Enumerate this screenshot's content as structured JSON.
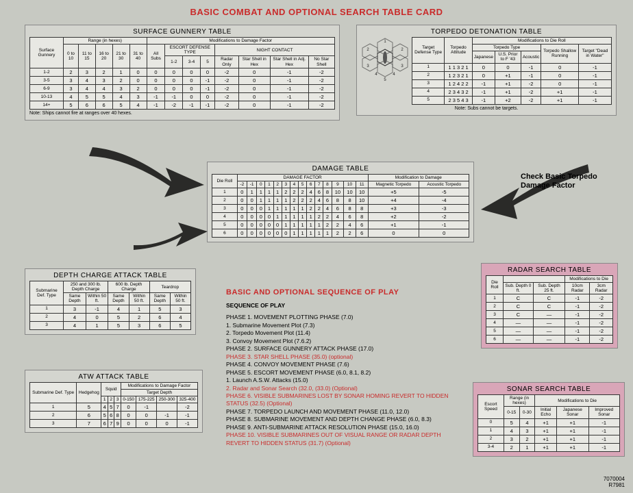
{
  "main_title": "BASIC COMBAT AND OPTIONAL SEARCH TABLE CARD",
  "surface_gunnery": {
    "title": "SURFACE GUNNERY TABLE",
    "super_range": "Range (in hexes)",
    "super_mod": "Modifications to Damage Factor",
    "sub_escort": "ESCORT DEFENSE TYPE",
    "sub_night": "NIGHT CONTACT",
    "col_rowhdr": "Surface Gunnery",
    "cols_range": [
      "0 to 10",
      "11 to 15",
      "16 to 20",
      "21 to 30",
      "31 to 40"
    ],
    "col_allsubs": "All Subs",
    "cols_escort": [
      "1-2",
      "3-4",
      "5"
    ],
    "cols_night": [
      "Radar Only",
      "Star Shell in Hex",
      "Star Shell in Adj. Hex",
      "No Star Shell"
    ],
    "rows": [
      {
        "h": "1-2",
        "v": [
          "2",
          "3",
          "2",
          "1",
          "0",
          "0",
          "0",
          "0",
          "0",
          "-2",
          "0",
          "-1",
          "-2"
        ]
      },
      {
        "h": "3-5",
        "v": [
          "3",
          "4",
          "3",
          "2",
          "0",
          "0",
          "0",
          "0",
          "-1",
          "-2",
          "0",
          "-1",
          "-2"
        ]
      },
      {
        "h": "6-9",
        "v": [
          "3",
          "4",
          "4",
          "3",
          "2",
          "0",
          "0",
          "0",
          "-1",
          "-2",
          "0",
          "-1",
          "-2"
        ]
      },
      {
        "h": "10-13",
        "v": [
          "4",
          "5",
          "5",
          "4",
          "3",
          "-1",
          "-1",
          "0",
          "0",
          "-2",
          "0",
          "-1",
          "-2"
        ]
      },
      {
        "h": "14+",
        "v": [
          "5",
          "6",
          "6",
          "5",
          "4",
          "-1",
          "-2",
          "-1",
          "-1",
          "-2",
          "0",
          "-1",
          "-2"
        ]
      }
    ],
    "note": "Note: Ships cannot fire at ranges over 40 hexes."
  },
  "torpedo_detonation": {
    "title": "TORPEDO DETONATION TABLE",
    "super_mod": "Modifications to Die Roll",
    "sub_type": "Torpedo Type",
    "col_tdt": "Target Defense Type",
    "col_att": "Torpedo Attitude",
    "cols_type": [
      "Japanese",
      "U.S. Prior to F '43",
      "Acoustic"
    ],
    "col_shallow": "Torpedo Shallow Running",
    "col_dead": "Target \"Dead in Water\"",
    "rows": [
      {
        "h": "1",
        "att": "1 1 3 2 1",
        "v": [
          "0",
          "0",
          "-1",
          "0",
          "-1"
        ]
      },
      {
        "h": "2",
        "att": "1 2 3 2 1",
        "v": [
          "0",
          "+1",
          "-1",
          "0",
          "-1"
        ]
      },
      {
        "h": "3",
        "att": "1 2 4 2 2",
        "v": [
          "-1",
          "+1",
          "-2",
          "0",
          "-1"
        ]
      },
      {
        "h": "4",
        "att": "2 3 4 3 2",
        "v": [
          "-1",
          "+1",
          "-2",
          "+1",
          "-1"
        ]
      },
      {
        "h": "5",
        "att": "2 3 5 4 3",
        "v": [
          "-1",
          "+2",
          "-2",
          "+1",
          "-1"
        ]
      }
    ],
    "note": "Note: Subs cannot be targets."
  },
  "damage": {
    "title": "DAMAGE TABLE",
    "sub": "DAMAGE FACTOR",
    "mod_hdr": "Modification to Damage",
    "col_die": "Die Roll",
    "cols_df": [
      "-2",
      "-1",
      "0",
      "1",
      "2",
      "3",
      "4",
      "5",
      "6",
      "7",
      "8",
      "9",
      "10",
      "11"
    ],
    "col_mag": "Magnetic Torpedo",
    "col_ac": "Acoustic Torpedo",
    "rows": [
      {
        "h": "1",
        "v": [
          "0",
          "1",
          "1",
          "1",
          "1",
          "2",
          "2",
          "2",
          "4",
          "6",
          "8",
          "10",
          "10",
          "10",
          "+5",
          "-5"
        ]
      },
      {
        "h": "2",
        "v": [
          "0",
          "0",
          "1",
          "1",
          "1",
          "1",
          "2",
          "2",
          "2",
          "4",
          "6",
          "8",
          "8",
          "10",
          "+4",
          "-4"
        ]
      },
      {
        "h": "3",
        "v": [
          "0",
          "0",
          "0",
          "1",
          "1",
          "1",
          "1",
          "1",
          "2",
          "2",
          "4",
          "6",
          "8",
          "8",
          "+3",
          "-3"
        ]
      },
      {
        "h": "4",
        "v": [
          "0",
          "0",
          "0",
          "0",
          "1",
          "1",
          "1",
          "1",
          "1",
          "2",
          "2",
          "4",
          "6",
          "8",
          "+2",
          "-2"
        ]
      },
      {
        "h": "5",
        "v": [
          "0",
          "0",
          "0",
          "0",
          "0",
          "1",
          "1",
          "1",
          "1",
          "1",
          "2",
          "2",
          "4",
          "6",
          "+1",
          "-1"
        ]
      },
      {
        "h": "6",
        "v": [
          "0",
          "0",
          "0",
          "0",
          "0",
          "0",
          "1",
          "1",
          "1",
          "1",
          "1",
          "2",
          "2",
          "6",
          "0",
          "0"
        ]
      }
    ]
  },
  "depth_charge": {
    "title": "DEPTH CHARGE ATTACK TABLE",
    "grp1": "250 and 300 lb. Depth Charge",
    "grp2": "600 lb. Depth Charge",
    "grp3": "Teardrop",
    "col_rowhdr": "Submarine Def. Type",
    "subcols": [
      "Same Depth",
      "Within 50 ft."
    ],
    "rows": [
      {
        "h": "1",
        "v": [
          "3",
          "-1",
          "4",
          "1",
          "5",
          "3"
        ]
      },
      {
        "h": "2",
        "v": [
          "4",
          "0",
          "5",
          "2",
          "6",
          "4"
        ]
      },
      {
        "h": "3",
        "v": [
          "4",
          "1",
          "5",
          "3",
          "6",
          "5"
        ]
      }
    ]
  },
  "atw": {
    "title": "ATW ATTACK TABLE",
    "col_rowhdr": "Submarine Def. Type",
    "col_hedge": "Hedgehog",
    "grp_squid": "Squid",
    "squid_cols": [
      "1",
      "2",
      "3"
    ],
    "grp_mod": "Modifications to Damage Factor",
    "sub_td": "Target Depth",
    "td_cols": [
      "0-150",
      "175-225",
      "250-300",
      "325-400"
    ],
    "rows": [
      {
        "h": "1",
        "v": [
          "5",
          "4",
          "5",
          "7",
          "0",
          "-1",
          "",
          "-2"
        ]
      },
      {
        "h": "2",
        "v": [
          "6",
          "5",
          "6",
          "8",
          "0",
          "0",
          "-1",
          "-1"
        ]
      },
      {
        "h": "3",
        "v": [
          "7",
          "6",
          "7",
          "9",
          "0",
          "0",
          "0",
          "-1"
        ]
      }
    ]
  },
  "radar": {
    "title": "RADAR SEARCH TABLE",
    "mod": "Modifications to Die",
    "col_die": "Die Roll",
    "cols": [
      "Sub. Depth 0 ft.",
      "Sub. Depth 25 ft.",
      "10cm Radar",
      "3cm Radar"
    ],
    "rows": [
      {
        "h": "1",
        "v": [
          "C",
          "C",
          "-1",
          "-2"
        ]
      },
      {
        "h": "2",
        "v": [
          "C",
          "C",
          "-1",
          "-2"
        ]
      },
      {
        "h": "3",
        "v": [
          "C",
          "—",
          "-1",
          "-2"
        ]
      },
      {
        "h": "4",
        "v": [
          "—",
          "—",
          "-1",
          "-2"
        ]
      },
      {
        "h": "5",
        "v": [
          "—",
          "—",
          "-1",
          "-2"
        ]
      },
      {
        "h": "6",
        "v": [
          "—",
          "—",
          "-1",
          "-2"
        ]
      }
    ]
  },
  "sonar": {
    "title": "SONAR SEARCH TABLE",
    "range_hdr": "Range (in hexes)",
    "mod": "Modifications to Die",
    "col_esc": "Escort Speed",
    "cols": [
      "0-15",
      "0-30",
      "Initial Echo",
      "Japanese Sonar",
      "Improved Sonar"
    ],
    "rows": [
      {
        "h": "0",
        "v": [
          "5",
          "4",
          "+1",
          "+1",
          "-1"
        ]
      },
      {
        "h": "1",
        "v": [
          "4",
          "3",
          "+1",
          "+1",
          "-1"
        ]
      },
      {
        "h": "2",
        "v": [
          "3",
          "2",
          "+1",
          "+1",
          "-1"
        ]
      },
      {
        "h": "3-4",
        "v": [
          "2",
          "1",
          "+1",
          "+1",
          "-1"
        ]
      }
    ]
  },
  "arrow_label": "Check Basic Torpedo Damage Factor",
  "sequence": {
    "header": "BASIC AND OPTIONAL SEQUENCE OF PLAY",
    "sub": "SEQUENCE OF PLAY",
    "lines": [
      {
        "t": "PHASE 1. MOVEMENT PLOTTING PHASE (7.0)",
        "o": false
      },
      {
        "t": "1. Submarine Movement Plot (7.3)",
        "o": false
      },
      {
        "t": "2. Torpedo Movement Plot (11.4)",
        "o": false
      },
      {
        "t": "3. Convoy Movement Plot (7.6.2)",
        "o": false
      },
      {
        "t": "PHASE 2. SURFACE GUNNERY ATTACK PHASE (17.0)",
        "o": false
      },
      {
        "t": "PHASE 3. STAR SHELL PHASE (35.0) (optional)",
        "o": true
      },
      {
        "t": "PHASE 4. CONVOY MOVEMENT PHASE (7.6)",
        "o": false
      },
      {
        "t": "PHASE 5. ESCORT MOVEMENT PHASE (6.0, 8.1, 8.2)",
        "o": false
      },
      {
        "t": "1. Launch A.S.W. Attacks (15.0)",
        "o": false
      },
      {
        "t": "2. Radar and Sonar Search (32.0, (33.0) (Optional)",
        "o": true
      },
      {
        "t": "PHASE 6. VISIBLE SUBMARINES LOST BY SONAR HOMING REVERT TO HIDDEN STATUS (32.5) (Optional)",
        "o": true
      },
      {
        "t": "PHASE 7. TORPEDO LAUNCH AND MOVEMENT PHASE (11.0, 12.0)",
        "o": false
      },
      {
        "t": "PHASE 8. SUBMARINE MOVEMENT AND DEPTH CHANGE PHASE (6.0, 8.3)",
        "o": false
      },
      {
        "t": "PHASE 9. ANTI-SUBMARINE ATTACK RESOLUTION PHASE (15.0, 16.0)",
        "o": false
      },
      {
        "t": "PHASE 10. VISIBLE SUBMARINES OUT OF VISUAL RANGE OR RADAR DEPTH REVERT TO HIDDEN STATUS (31.7) (Optional)",
        "o": true
      }
    ]
  },
  "footer1": "7070004",
  "footer2": "R7981"
}
